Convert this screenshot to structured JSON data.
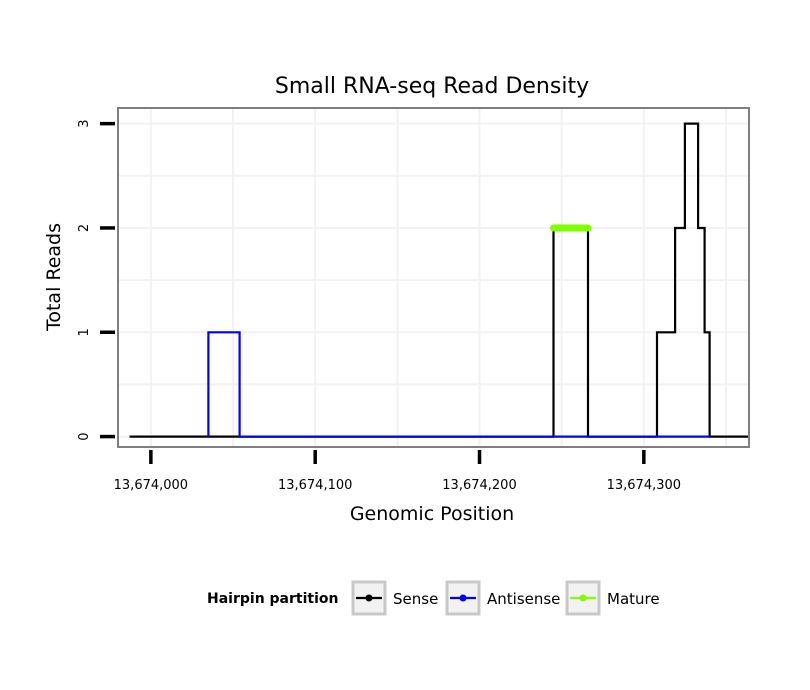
{
  "chart_data": {
    "type": "line",
    "title": "Small RNA-seq Read Density",
    "xlabel": "Genomic Position",
    "ylabel": "Total Reads",
    "xlim": [
      13673980,
      13674364
    ],
    "ylim": [
      -0.1,
      3.15
    ],
    "x_ticks": [
      13674000,
      13674100,
      13674200,
      13674300
    ],
    "x_tick_labels": [
      "13,674,000",
      "13,674,100",
      "13,674,200",
      "13,674,300"
    ],
    "y_ticks": [
      0,
      1,
      2,
      3
    ],
    "y_tick_labels": [
      "0",
      "1",
      "2",
      "3"
    ],
    "grid": true,
    "series": [
      {
        "name": "Sense",
        "color": "#000000",
        "x": [
          13673987,
          13674245,
          13674245,
          13674266,
          13674266,
          13674308,
          13674308,
          13674319,
          13674319,
          13674325,
          13674325,
          13674333,
          13674333,
          13674337,
          13674337,
          13674340,
          13674340,
          13674364
        ],
        "y": [
          0,
          0,
          2,
          2,
          0,
          0,
          1,
          1,
          2,
          2,
          3,
          3,
          2,
          2,
          1,
          1,
          0,
          0
        ]
      },
      {
        "name": "Antisense",
        "color": "#0000ff",
        "x": [
          13674035,
          13674035,
          13674054,
          13674054,
          13674245,
          13674245,
          13674266,
          13674266,
          13674308,
          13674308,
          13674340,
          13674340
        ],
        "y": [
          0,
          1,
          1,
          0,
          0,
          0,
          0,
          0,
          0,
          0,
          0,
          0
        ]
      },
      {
        "name": "Mature",
        "color": "#7fff00",
        "x": [
          13674245,
          13674266
        ],
        "y": [
          2,
          2
        ]
      }
    ],
    "legend": {
      "title": "Hairpin partition",
      "position": "bottom",
      "entries": [
        {
          "label": "Sense",
          "color": "#000000"
        },
        {
          "label": "Antisense",
          "color": "#0000ff"
        },
        {
          "label": "Mature",
          "color": "#7fff00"
        }
      ]
    }
  }
}
